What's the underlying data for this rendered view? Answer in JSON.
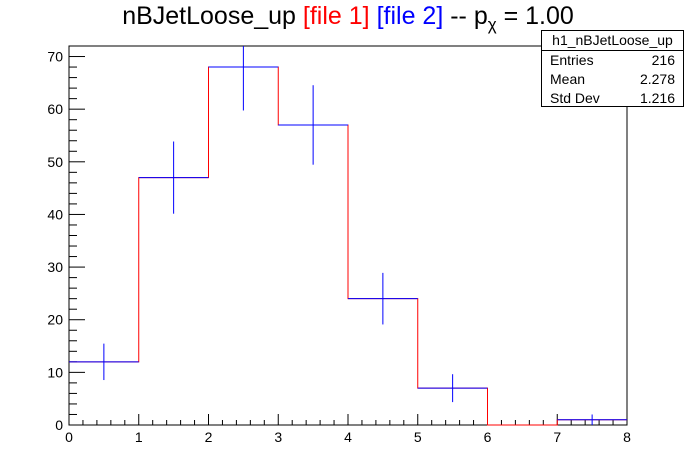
{
  "title": {
    "main": "nBJetLoose_up",
    "file1": "[file 1]",
    "file2": "[file 2]",
    "suffix_prefix": "-- p",
    "suffix_sub": "χ",
    "suffix_value": "= 1.00"
  },
  "stats": {
    "name": "h1_nBJetLoose_up",
    "entries_label": "Entries",
    "entries_value": "216",
    "mean_label": "Mean",
    "mean_value": "2.278",
    "stddev_label": "Std Dev",
    "stddev_value": "1.216"
  },
  "chart_data": {
    "type": "bar",
    "title": "nBJetLoose_up [file 1] [file 2] -- pχ = 1.00",
    "xlabel": "",
    "ylabel": "",
    "xlim": [
      0,
      8
    ],
    "ylim": [
      0,
      72
    ],
    "x_ticks": [
      0,
      1,
      2,
      3,
      4,
      5,
      6,
      7,
      8
    ],
    "y_ticks": [
      0,
      10,
      20,
      30,
      40,
      50,
      60,
      70
    ],
    "bin_edges": [
      0,
      1,
      2,
      3,
      4,
      5,
      6,
      7,
      8
    ],
    "series": [
      {
        "color": "#ff0000",
        "style": "step",
        "values": [
          12,
          47,
          68,
          57,
          24,
          7,
          0,
          1
        ]
      },
      {
        "color": "#0000ff",
        "style": "errorbar",
        "values": [
          12,
          47,
          68,
          57,
          24,
          7,
          0,
          1
        ],
        "errors": [
          3.46,
          6.86,
          8.25,
          7.55,
          4.9,
          2.65,
          0,
          1
        ]
      }
    ]
  }
}
